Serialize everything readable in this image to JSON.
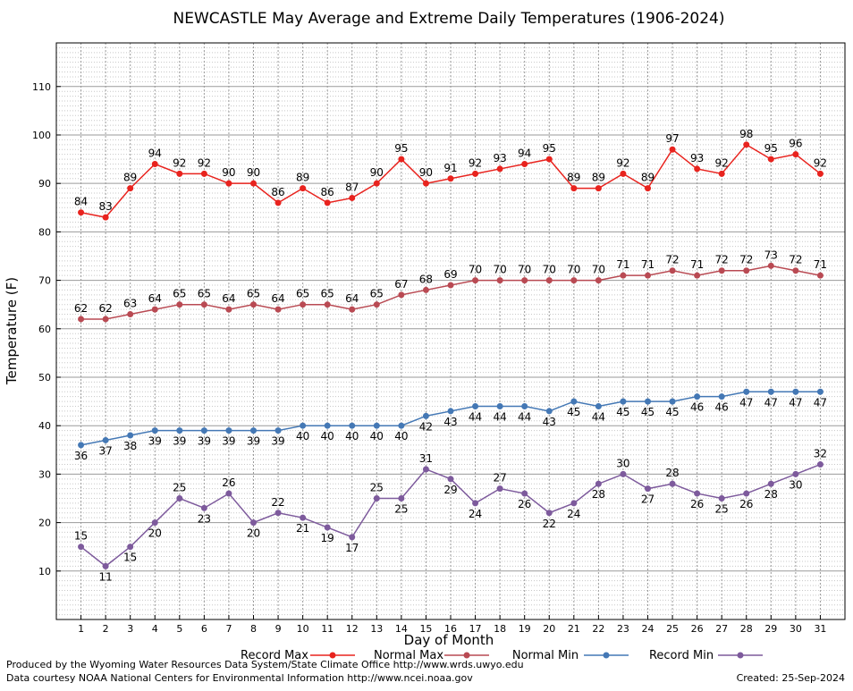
{
  "chart_data": {
    "type": "line",
    "title": "NEWCASTLE May Average and Extreme Daily Temperatures (1906-2024)",
    "xlabel": "Day of Month",
    "ylabel": "Temperature (F)",
    "x": [
      1,
      2,
      3,
      4,
      5,
      6,
      7,
      8,
      9,
      10,
      11,
      12,
      13,
      14,
      15,
      16,
      17,
      18,
      19,
      20,
      21,
      22,
      23,
      24,
      25,
      26,
      27,
      28,
      29,
      30,
      31
    ],
    "xlim": [
      0,
      32
    ],
    "ylim": [
      0,
      119
    ],
    "yticks": [
      10,
      20,
      30,
      40,
      50,
      60,
      70,
      80,
      90,
      100,
      110
    ],
    "grid": true,
    "legend_position": "bottom",
    "series": [
      {
        "name": "Record Max",
        "color": "#e8231e",
        "values": [
          84,
          83,
          89,
          94,
          92,
          92,
          90,
          90,
          86,
          89,
          86,
          87,
          90,
          95,
          90,
          91,
          92,
          93,
          94,
          95,
          89,
          89,
          92,
          89,
          97,
          93,
          92,
          98,
          95,
          96,
          92
        ]
      },
      {
        "name": "Normal Max",
        "color": "#b94a53",
        "values": [
          62,
          62,
          63,
          64,
          65,
          65,
          64,
          65,
          64,
          65,
          65,
          64,
          65,
          67,
          68,
          69,
          70,
          70,
          70,
          70,
          70,
          70,
          71,
          71,
          72,
          71,
          72,
          72,
          73,
          72,
          71
        ]
      },
      {
        "name": "Normal Min",
        "color": "#4478b5",
        "values": [
          36,
          37,
          38,
          39,
          39,
          39,
          39,
          39,
          39,
          40,
          40,
          40,
          40,
          40,
          42,
          43,
          44,
          44,
          44,
          43,
          45,
          44,
          45,
          45,
          45,
          46,
          46,
          47,
          47,
          47,
          47
        ]
      },
      {
        "name": "Record Min",
        "color": "#7d5a9c",
        "values": [
          15,
          11,
          15,
          20,
          25,
          23,
          26,
          20,
          22,
          21,
          19,
          17,
          25,
          25,
          31,
          29,
          24,
          27,
          26,
          22,
          24,
          28,
          30,
          27,
          28,
          26,
          25,
          26,
          28,
          30,
          32
        ]
      }
    ]
  },
  "footer": {
    "line1": "Produced by the Wyoming Water Resources Data System/State Climate Office http://www.wrds.uwyo.edu",
    "line2": "Data courtesy NOAA National Centers for Environmental Information http://www.ncei.noaa.gov",
    "created": "Created:  25-Sep-2024"
  }
}
